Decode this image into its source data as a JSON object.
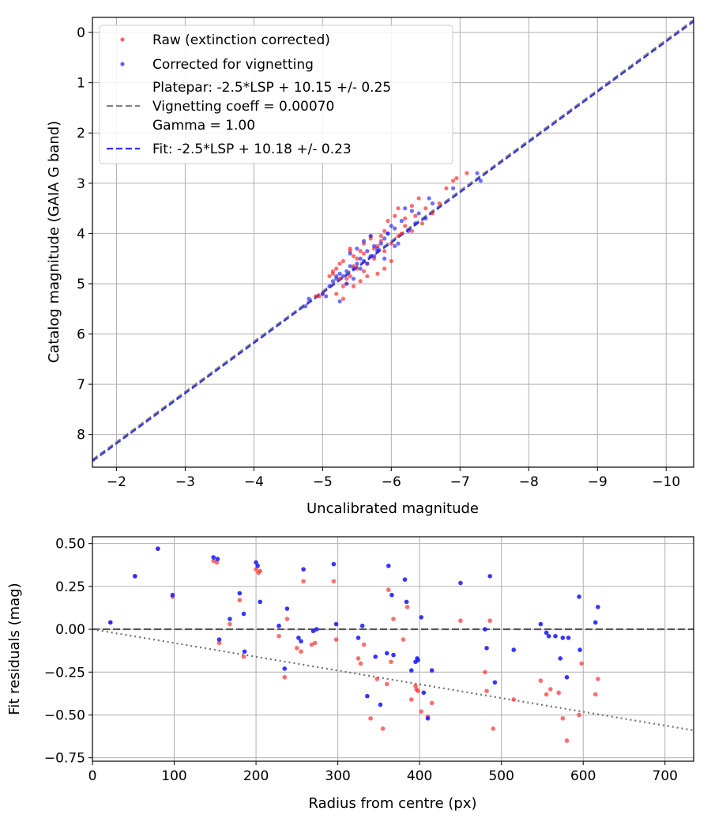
{
  "chart_data": [
    {
      "type": "scatter",
      "xlabel": "Uncalibrated magnitude",
      "ylabel": "Catalog magnitude (GAIA G band)",
      "xlim": [
        -1.65,
        -10.4
      ],
      "ylim": [
        8.65,
        -0.3
      ],
      "x_inverted": true,
      "y_inverted": true,
      "x_ticks": [
        -2,
        -3,
        -4,
        -5,
        -6,
        -7,
        -8,
        -9,
        -10
      ],
      "x_tick_labels": [
        "−2",
        "−3",
        "−4",
        "−5",
        "−6",
        "−7",
        "−8",
        "−9",
        "−10"
      ],
      "y_ticks": [
        0,
        1,
        2,
        3,
        4,
        5,
        6,
        7,
        8
      ],
      "y_tick_labels": [
        "0",
        "1",
        "2",
        "3",
        "4",
        "5",
        "6",
        "7",
        "8"
      ],
      "grid": true,
      "legend_position": "top-left",
      "legend": [
        {
          "label_lines": [
            "Raw (extinction corrected)"
          ],
          "kind": "scatter",
          "color": "#ff2020"
        },
        {
          "label_lines": [
            "Corrected for vignetting"
          ],
          "kind": "scatter",
          "color": "#2020ff"
        },
        {
          "label_lines": [
            "Platepar: -2.5*LSP + 10.15 +/- 0.25",
            "Vignetting coeff = 0.00070",
            "Gamma = 1.00"
          ],
          "kind": "line",
          "color": "#808080"
        },
        {
          "label_lines": [
            "Fit: -2.5*LSP + 10.18 +/- 0.23"
          ],
          "kind": "line",
          "color": "#3030ff"
        }
      ],
      "lines": [
        {
          "name": "Platepar",
          "slope": 1,
          "intercept": 10.15,
          "color": "#808080"
        },
        {
          "name": "Fit",
          "slope": 1,
          "intercept": 10.18,
          "color": "#3030ff"
        }
      ],
      "series": [
        {
          "name": "Raw (extinction corrected)",
          "color": "#ff2020",
          "x": [
            -7.1,
            -6.9,
            -6.95,
            -6.8,
            -6.4,
            -6.3,
            -6.1,
            -6.2,
            -6.05,
            -5.95,
            -6.15,
            -5.9,
            -5.85,
            -6.0,
            -5.75,
            -5.7,
            -5.8,
            -5.6,
            -5.55,
            -5.5,
            -5.45,
            -5.4,
            -5.3,
            -5.25,
            -5.2,
            -5.15,
            -5.1,
            -5.4,
            -5.35,
            -5.45,
            -5.5,
            -5.6,
            -5.65,
            -5.8,
            -5.9,
            -6.0,
            -5.85,
            -5.7,
            -5.6,
            -5.4,
            -5.3,
            -5.2,
            -5.0,
            -4.95,
            -5.3,
            -5.35,
            -5.45,
            -5.55,
            -5.65,
            -5.75,
            -5.9,
            -6.1,
            -6.2,
            -6.3,
            -6.45,
            -6.6,
            -6.7,
            -6.5,
            -6.35,
            -5.25,
            -5.15,
            -4.9
          ],
          "y": [
            2.8,
            2.95,
            2.9,
            3.1,
            3.3,
            3.45,
            3.5,
            3.7,
            3.65,
            3.75,
            4.0,
            3.95,
            4.05,
            4.2,
            4.3,
            4.1,
            4.25,
            4.4,
            4.35,
            4.5,
            4.45,
            4.3,
            4.55,
            4.6,
            4.7,
            4.8,
            4.85,
            4.85,
            4.9,
            4.65,
            4.7,
            4.75,
            4.6,
            4.8,
            4.7,
            4.55,
            4.15,
            4.05,
            4.2,
            4.35,
            5.05,
            5.2,
            5.2,
            5.25,
            5.3,
            5.0,
            5.05,
            4.95,
            4.85,
            4.5,
            4.35,
            4.05,
            3.85,
            3.95,
            3.8,
            3.6,
            3.4,
            3.5,
            3.65,
            4.9,
            4.75,
            5.25
          ]
        },
        {
          "name": "Corrected for vignetting",
          "color": "#2020ff",
          "x": [
            -7.25,
            -7.3,
            -6.9,
            -6.55,
            -6.6,
            -6.4,
            -6.3,
            -6.2,
            -6.15,
            -6.05,
            -6.0,
            -5.95,
            -5.9,
            -5.85,
            -5.8,
            -5.75,
            -5.7,
            -5.65,
            -5.6,
            -5.55,
            -5.5,
            -5.45,
            -5.4,
            -5.35,
            -5.3,
            -5.25,
            -5.2,
            -5.15,
            -5.1,
            -5.0,
            -4.75,
            -4.8,
            -5.4,
            -5.5,
            -5.6,
            -5.7,
            -5.8,
            -5.9,
            -6.05,
            -6.25,
            -6.35,
            -6.5,
            -5.45,
            -5.35,
            -5.25,
            -5.55,
            -5.65,
            -5.75,
            -5.05,
            -5.2,
            -6.1,
            -5.95
          ],
          "y": [
            2.8,
            2.95,
            3.1,
            3.3,
            3.4,
            3.6,
            3.55,
            3.5,
            3.75,
            3.9,
            3.85,
            4.0,
            4.1,
            4.2,
            4.3,
            4.25,
            4.45,
            4.35,
            4.55,
            4.5,
            4.6,
            4.7,
            4.65,
            4.75,
            4.85,
            4.8,
            4.9,
            4.95,
            5.05,
            5.2,
            5.45,
            5.3,
            4.4,
            4.3,
            4.15,
            4.05,
            4.35,
            4.5,
            4.25,
            3.95,
            3.8,
            3.7,
            4.9,
            5.0,
            5.35,
            4.7,
            4.6,
            4.45,
            5.25,
            4.85,
            4.2,
            4.0
          ]
        }
      ]
    },
    {
      "type": "scatter",
      "xlabel": "Radius from centre (px)",
      "ylabel": "Fit residuals (mag)",
      "xlim": [
        0,
        735
      ],
      "ylim": [
        -0.77,
        0.54
      ],
      "x_ticks": [
        0,
        100,
        200,
        300,
        400,
        500,
        600,
        700
      ],
      "x_tick_labels": [
        "0",
        "100",
        "200",
        "300",
        "400",
        "500",
        "600",
        "700"
      ],
      "y_ticks": [
        0.5,
        0.25,
        0.0,
        -0.25,
        -0.5,
        -0.75
      ],
      "y_tick_labels": [
        "0.50",
        "0.25",
        "0.00",
        "−0.25",
        "−0.50",
        "−0.75"
      ],
      "grid": true,
      "lines": [
        {
          "name": "zero line",
          "kind": "dashed",
          "slope": 0,
          "intercept": 0,
          "color": "#555555"
        },
        {
          "name": "vignetting curve",
          "kind": "dotted",
          "x": [
            0,
            735
          ],
          "y": [
            0.0,
            -0.59
          ],
          "color": "#707070"
        }
      ],
      "series": [
        {
          "name": "Raw (extinction corrected)",
          "color": "#ff2020",
          "x": [
            22,
            52,
            80,
            98,
            148,
            152,
            155,
            168,
            180,
            185,
            200,
            203,
            205,
            228,
            235,
            238,
            250,
            255,
            258,
            268,
            272,
            295,
            298,
            325,
            328,
            332,
            340,
            348,
            355,
            360,
            362,
            365,
            368,
            380,
            385,
            390,
            395,
            396,
            398,
            402,
            410,
            415,
            450,
            480,
            482,
            486,
            490,
            515,
            548,
            555,
            560,
            570,
            575,
            580,
            595,
            598,
            615,
            618
          ],
          "y": [
            0.04,
            0.31,
            0.47,
            0.19,
            0.4,
            0.39,
            -0.08,
            0.03,
            0.17,
            -0.16,
            0.35,
            0.33,
            0.34,
            -0.04,
            -0.28,
            0.06,
            -0.11,
            -0.13,
            0.28,
            -0.09,
            -0.08,
            0.28,
            -0.06,
            -0.17,
            -0.2,
            -0.09,
            -0.52,
            -0.29,
            -0.58,
            -0.32,
            0.23,
            -0.19,
            0.06,
            -0.06,
            0.13,
            -0.41,
            -0.33,
            -0.35,
            -0.36,
            -0.48,
            -0.51,
            -0.43,
            0.05,
            -0.25,
            -0.36,
            0.05,
            -0.58,
            -0.41,
            -0.3,
            -0.38,
            -0.35,
            -0.37,
            -0.52,
            -0.65,
            -0.5,
            -0.2,
            -0.38,
            -0.29
          ]
        },
        {
          "name": "Corrected for vignetting",
          "color": "#2020ff",
          "x": [
            22,
            52,
            80,
            98,
            148,
            153,
            155,
            168,
            180,
            185,
            186,
            200,
            202,
            205,
            228,
            235,
            238,
            252,
            255,
            258,
            270,
            274,
            295,
            298,
            325,
            330,
            336,
            346,
            352,
            360,
            362,
            366,
            368,
            382,
            384,
            390,
            395,
            397,
            398,
            402,
            405,
            410,
            415,
            450,
            480,
            482,
            486,
            492,
            515,
            548,
            555,
            558,
            566,
            572,
            575,
            580,
            582,
            595,
            596,
            615,
            618
          ],
          "y": [
            0.04,
            0.31,
            0.47,
            0.2,
            0.42,
            0.41,
            -0.06,
            0.06,
            0.21,
            0.09,
            -0.13,
            0.39,
            0.37,
            0.16,
            0.02,
            -0.23,
            0.12,
            -0.05,
            -0.07,
            0.35,
            -0.01,
            0.0,
            0.38,
            0.03,
            -0.05,
            0.02,
            -0.39,
            -0.16,
            -0.44,
            -0.14,
            0.37,
            0.2,
            -0.15,
            0.29,
            0.16,
            -0.24,
            -0.19,
            -0.17,
            -0.18,
            0.07,
            -0.37,
            -0.52,
            -0.24,
            0.27,
            0.0,
            -0.11,
            0.31,
            -0.31,
            -0.12,
            0.03,
            -0.02,
            -0.04,
            -0.04,
            -0.17,
            -0.05,
            -0.28,
            -0.05,
            0.19,
            -0.12,
            0.04,
            0.13
          ]
        }
      ]
    }
  ]
}
